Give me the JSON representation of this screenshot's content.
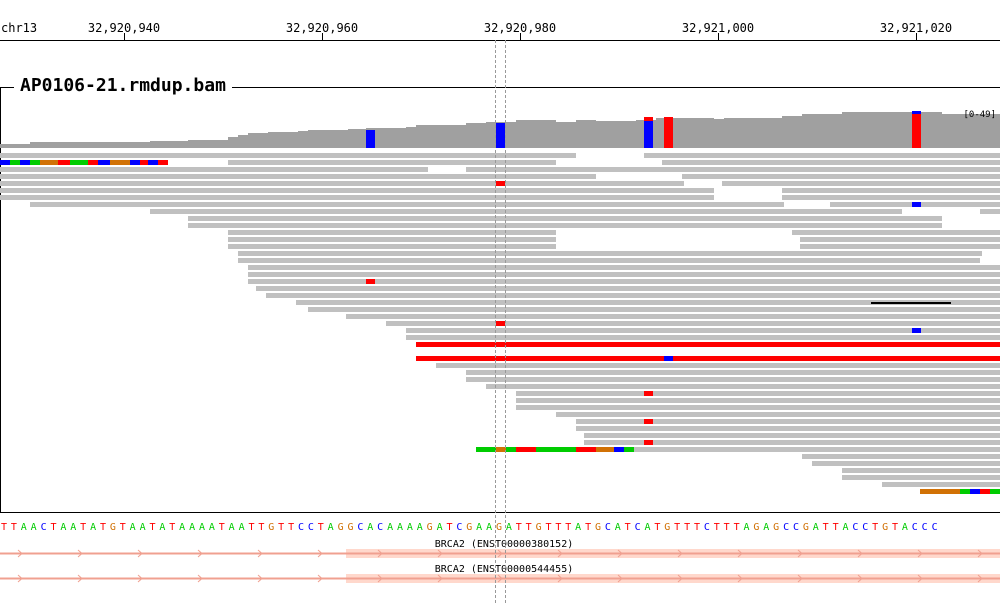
{
  "ruler": {
    "chromosome": "chr13",
    "ticks": [
      "32,920,940",
      "32,920,960",
      "32,920,980",
      "32,921,000",
      "32,921,020"
    ]
  },
  "track": {
    "title": "AP0106-21.rmdup.bam",
    "data_range": "[0-49]"
  },
  "sequence": "TTAACTAATATGTAATATAAAATAATTGTTCCTAGGCACAAAAGATCGAAGATTGTTTATGCATCATGTTTCTTTAGAGCCGATTACCTGTACCC",
  "genes": [
    {
      "label": "BRCA2 (ENST00000380152)"
    },
    {
      "label": "BRCA2 (ENST00000544455)"
    }
  ],
  "colors": {
    "read": "#c0c0c0",
    "coverage": "#a0a0a0",
    "A": "#00cc00",
    "C": "#0000ff",
    "G": "#d17105",
    "T": "#ff0000",
    "gene": "#f0a090",
    "exon": "#ffd8cc"
  }
}
